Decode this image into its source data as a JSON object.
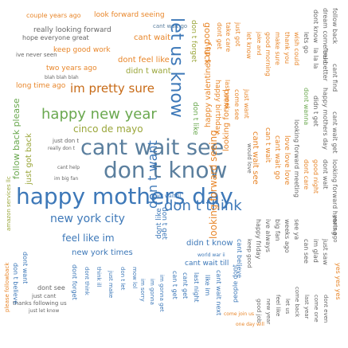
{
  "palette": {
    "orange": "#e8862a",
    "dark_orange": "#c76a16",
    "green": "#6aa84f",
    "olive": "#9aa63a",
    "blue": "#3d78b8",
    "steel": "#5b7f9e",
    "gray": "#666666"
  },
  "words": [
    {
      "text": "couple years ago",
      "color": "orange"
    },
    {
      "text": "look forward seeing",
      "color": "orange"
    },
    {
      "text": "really looking forward",
      "color": "gray"
    },
    {
      "text": "cant wait go",
      "color": "steel"
    },
    {
      "text": "hope everyone great",
      "color": "gray"
    },
    {
      "text": "cant wait",
      "color": "orange"
    },
    {
      "text": "ive never seen",
      "color": "gray"
    },
    {
      "text": "keep good work",
      "color": "orange"
    },
    {
      "text": "dont feel like",
      "color": "orange"
    },
    {
      "text": "two years ago",
      "color": "orange"
    },
    {
      "text": "didn t want",
      "color": "olive"
    },
    {
      "text": "blah blah blah",
      "color": "gray"
    },
    {
      "text": "long time ago",
      "color": "orange"
    },
    {
      "text": "im pretty sure",
      "color": "dark_orange"
    },
    {
      "text": "let us know",
      "color": "blue"
    },
    {
      "text": "happy new year",
      "color": "green"
    },
    {
      "text": "cinco de mayo",
      "color": "olive"
    },
    {
      "text": "cant wait see",
      "color": "steel"
    },
    {
      "text": "just don t",
      "color": "gray"
    },
    {
      "text": "really don t",
      "color": "gray"
    },
    {
      "text": "don t know",
      "color": "steel"
    },
    {
      "text": "cant help",
      "color": "gray"
    },
    {
      "text": "im big fan",
      "color": "gray"
    },
    {
      "text": "happy mothers day",
      "color": "blue"
    },
    {
      "text": "new york city",
      "color": "blue"
    },
    {
      "text": "feel like im",
      "color": "blue"
    },
    {
      "text": "new york times",
      "color": "blue"
    },
    {
      "text": "don t think",
      "color": "blue"
    },
    {
      "text": "didn t know",
      "color": "blue"
    },
    {
      "text": "cant wait til",
      "color": "blue"
    },
    {
      "text": "world war ii",
      "color": "blue"
    },
    {
      "text": "cant wait till",
      "color": "blue"
    },
    {
      "text": "dont see",
      "color": "gray"
    },
    {
      "text": "just cant",
      "color": "gray"
    },
    {
      "text": "thanks following us",
      "color": "gray"
    },
    {
      "text": "just let know",
      "color": "gray"
    },
    {
      "text": "come join us",
      "color": "orange"
    },
    {
      "text": "one day will",
      "color": "orange"
    },
    {
      "text": "follow back please",
      "color": "green"
    },
    {
      "text": "amazon services llc",
      "color": "olive"
    },
    {
      "text": "just got back",
      "color": "olive"
    },
    {
      "text": "please followback",
      "color": "orange"
    },
    {
      "text": "don t believe",
      "color": "blue"
    },
    {
      "text": "dont want",
      "color": "blue"
    },
    {
      "text": "don t want",
      "color": "blue"
    },
    {
      "text": "dont like",
      "color": "blue"
    },
    {
      "text": "don t get",
      "color": "blue"
    },
    {
      "text": "mow lol",
      "color": "blue"
    },
    {
      "text": "don t let",
      "color": "blue"
    },
    {
      "text": "think ill",
      "color": "blue"
    },
    {
      "text": "dont think",
      "color": "blue"
    },
    {
      "text": "just make",
      "color": "blue"
    },
    {
      "text": "can t get",
      "color": "blue"
    },
    {
      "text": "cant get",
      "color": "blue"
    },
    {
      "text": "im sorry",
      "color": "blue"
    },
    {
      "text": "im gonna",
      "color": "blue"
    },
    {
      "text": "im gonna get",
      "color": "blue"
    },
    {
      "text": "last night",
      "color": "blue"
    },
    {
      "text": "dont forget",
      "color": "blue"
    },
    {
      "text": "cant wait next",
      "color": "blue"
    },
    {
      "text": "like im",
      "color": "blue"
    },
    {
      "text": "people dont",
      "color": "blue"
    },
    {
      "text": "cant believe",
      "color": "blue"
    },
    {
      "text": "looking forward seeing",
      "color": "orange"
    },
    {
      "text": "happy valentines day",
      "color": "orange"
    },
    {
      "text": "good luck",
      "color": "orange"
    },
    {
      "text": "dont get",
      "color": "orange"
    },
    {
      "text": "take care",
      "color": "orange"
    },
    {
      "text": "just got",
      "color": "orange"
    },
    {
      "text": "happy birthday",
      "color": "orange"
    },
    {
      "text": "last week",
      "color": "orange"
    },
    {
      "text": "let know",
      "color": "orange"
    },
    {
      "text": "come see",
      "color": "orange"
    },
    {
      "text": "jake and",
      "color": "orange"
    },
    {
      "text": "just want",
      "color": "orange"
    },
    {
      "text": "don t forget",
      "color": "olive"
    },
    {
      "text": "looking forward",
      "color": "orange"
    },
    {
      "text": "don t like",
      "color": "green"
    },
    {
      "text": "good morning",
      "color": "orange"
    },
    {
      "text": "make sure",
      "color": "orange"
    },
    {
      "text": "thank you",
      "color": "orange"
    },
    {
      "text": "wish could",
      "color": "orange"
    },
    {
      "text": "dont know",
      "color": "gray"
    },
    {
      "text": "dont wanna",
      "color": "green"
    },
    {
      "text": "dream come true",
      "color": "gray"
    },
    {
      "text": "cant wait see",
      "color": "orange"
    },
    {
      "text": "yes yes yes",
      "color": "orange"
    },
    {
      "text": "follow back",
      "color": "gray"
    },
    {
      "text": "can t wait",
      "color": "orange"
    },
    {
      "text": "didn t get",
      "color": "gray"
    },
    {
      "text": "happy mothers day",
      "color": "gray"
    },
    {
      "text": "lets go",
      "color": "gray"
    },
    {
      "text": "la la la",
      "color": "gray"
    },
    {
      "text": "feel better",
      "color": "gray"
    },
    {
      "text": "cant find",
      "color": "gray"
    },
    {
      "text": "cant wait get",
      "color": "gray"
    },
    {
      "text": "cant wait go",
      "color": "orange"
    },
    {
      "text": "love love love",
      "color": "orange"
    },
    {
      "text": "looking forward meeting",
      "color": "gray"
    },
    {
      "text": "dont care",
      "color": "orange"
    },
    {
      "text": "good night",
      "color": "orange"
    },
    {
      "text": "dont wait",
      "color": "gray"
    },
    {
      "text": "looking forward hearing",
      "color": "gray"
    },
    {
      "text": "happy friday",
      "color": "gray"
    },
    {
      "text": "ive always",
      "color": "gray"
    },
    {
      "text": "big fan",
      "color": "gray"
    },
    {
      "text": "weeks ago",
      "color": "gray"
    },
    {
      "text": "see ya",
      "color": "gray"
    },
    {
      "text": "can see",
      "color": "gray"
    },
    {
      "text": "im glad",
      "color": "gray"
    },
    {
      "text": "just saw",
      "color": "gray"
    },
    {
      "text": "years ago",
      "color": "gray"
    },
    {
      "text": "would love",
      "color": "gray"
    },
    {
      "text": "keep good",
      "color": "gray"
    },
    {
      "text": "come back",
      "color": "gray"
    },
    {
      "text": "last year",
      "color": "gray"
    },
    {
      "text": "come one",
      "color": "gray"
    },
    {
      "text": "dont even",
      "color": "gray"
    },
    {
      "text": "feel like",
      "color": "gray"
    },
    {
      "text": "let us",
      "color": "gray"
    },
    {
      "text": "new year",
      "color": "gray"
    },
    {
      "text": "good job",
      "color": "gray"
    }
  ]
}
